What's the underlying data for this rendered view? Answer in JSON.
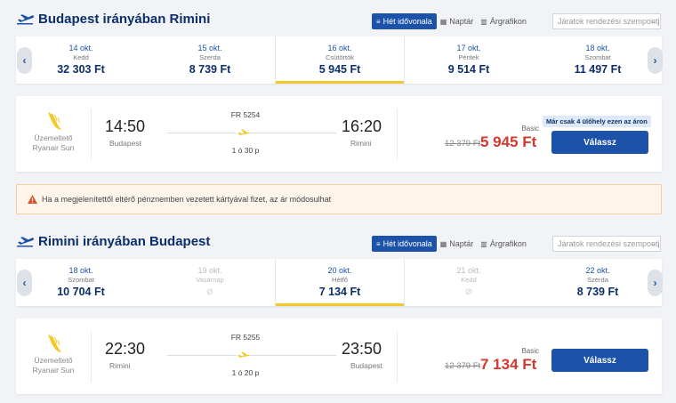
{
  "outbound": {
    "title": "Budapest irányában Rimini",
    "view_toggle": [
      "Hét idővonala",
      "Naptár",
      "Árgrafikon"
    ],
    "sort_placeholder": "Járatok rendezési szempontja:",
    "days": [
      {
        "date": "14 okt.",
        "weekday": "Kedd",
        "price": "32 303 Ft"
      },
      {
        "date": "15 okt.",
        "weekday": "Szerda",
        "price": "8 739 Ft"
      },
      {
        "date": "16 okt.",
        "weekday": "Csütörtök",
        "price": "5 945 Ft"
      },
      {
        "date": "17 okt.",
        "weekday": "Péntek",
        "price": "9 514 Ft"
      },
      {
        "date": "18 okt.",
        "weekday": "Szombat",
        "price": "11 497 Ft"
      }
    ],
    "flight": {
      "operator_label": "Üzemeltető",
      "operator_name": "Ryanair Sun",
      "dep_time": "14:50",
      "dep_city": "Budapest",
      "arr_time": "16:20",
      "arr_city": "Rimini",
      "flight_no": "FR 5254",
      "duration": "1 ó 30 p",
      "fare_type": "Basic",
      "old_price": "12 379 Ft",
      "price": "5 945 Ft",
      "seats_note": "Már csak 4 ülőhely ezen az áron",
      "button": "Válassz"
    }
  },
  "warning": "Ha a megjelenítettől eltérő pénznemben vezetett kártyával fizet, az ár módosulhat",
  "inbound": {
    "title": "Rimini irányában Budapest",
    "view_toggle": [
      "Hét idővonala",
      "Naptár",
      "Árgrafikon"
    ],
    "sort_placeholder": "Járatok rendezési szempontja:",
    "days": [
      {
        "date": "18 okt.",
        "weekday": "Szombat",
        "price": "10 704 Ft"
      },
      {
        "date": "19 okt.",
        "weekday": "Vasárnap",
        "price": ""
      },
      {
        "date": "20 okt.",
        "weekday": "Hétfő",
        "price": "7 134 Ft"
      },
      {
        "date": "21 okt.",
        "weekday": "Kedd",
        "price": ""
      },
      {
        "date": "22 okt.",
        "weekday": "Szerda",
        "price": "8 739 Ft"
      }
    ],
    "flight": {
      "operator_label": "Üzemeltető",
      "operator_name": "Ryanair Sun",
      "dep_time": "22:30",
      "dep_city": "Rimini",
      "arr_time": "23:50",
      "arr_city": "Budapest",
      "flight_no": "FR 5255",
      "duration": "1 ó 20 p",
      "fare_type": "Basic",
      "old_price": "12 379 Ft",
      "price": "7 134 Ft",
      "button": "Válassz"
    }
  },
  "colors": {
    "brand_blue": "#1c53a8",
    "navy": "#0c2f6b",
    "price_red": "#d4382c",
    "accent_yellow": "#f3c928"
  },
  "icons": [
    "plane-takeoff-icon",
    "timeline-icon",
    "calendar-icon",
    "chart-icon",
    "chevron-left-icon",
    "chevron-right-icon",
    "ryanair-harp-icon",
    "plane-icon",
    "warning-icon",
    "no-flight-icon"
  ]
}
